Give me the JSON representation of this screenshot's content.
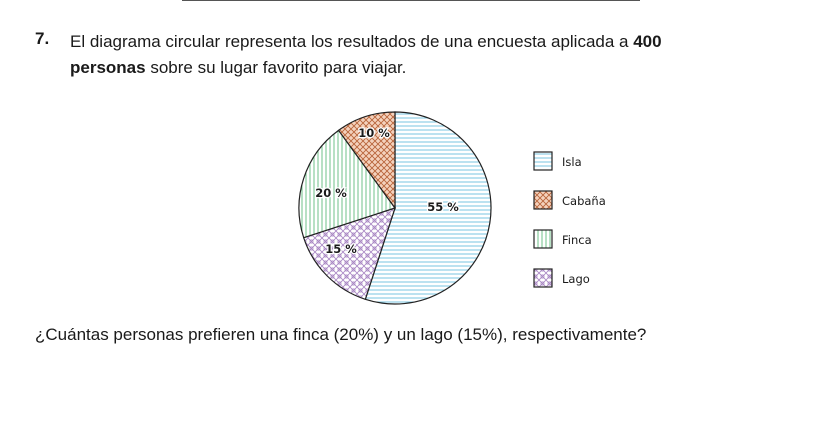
{
  "header": {
    "number": "7.",
    "text_pre": "El diagrama circular representa los resultados de una encuesta aplicada a ",
    "text_bold1": "400",
    "text_bold2": "personas",
    "text_post": " sobre su lugar favorito para viajar."
  },
  "question": "¿Cuántas personas prefieren una finca (20%) y un lago (15%), respectivamente?",
  "chart_data": {
    "type": "pie",
    "legend_position": "right",
    "slices": [
      {
        "name": "Isla",
        "value": 55,
        "label": "55 %",
        "pattern": "horizontal-lines",
        "color": "#79c6e0"
      },
      {
        "name": "Lago",
        "value": 15,
        "label": "15 %",
        "pattern": "mesh",
        "color": "#a987c4"
      },
      {
        "name": "Finca",
        "value": 20,
        "label": "20 %",
        "pattern": "vertical-lines",
        "color": "#6fc08a"
      },
      {
        "name": "Cabaña",
        "value": 10,
        "label": "10 %",
        "pattern": "crosshatch",
        "color": "#d98c5f"
      }
    ],
    "legend_order": [
      "Isla",
      "Cabaña",
      "Finca",
      "Lago"
    ]
  }
}
